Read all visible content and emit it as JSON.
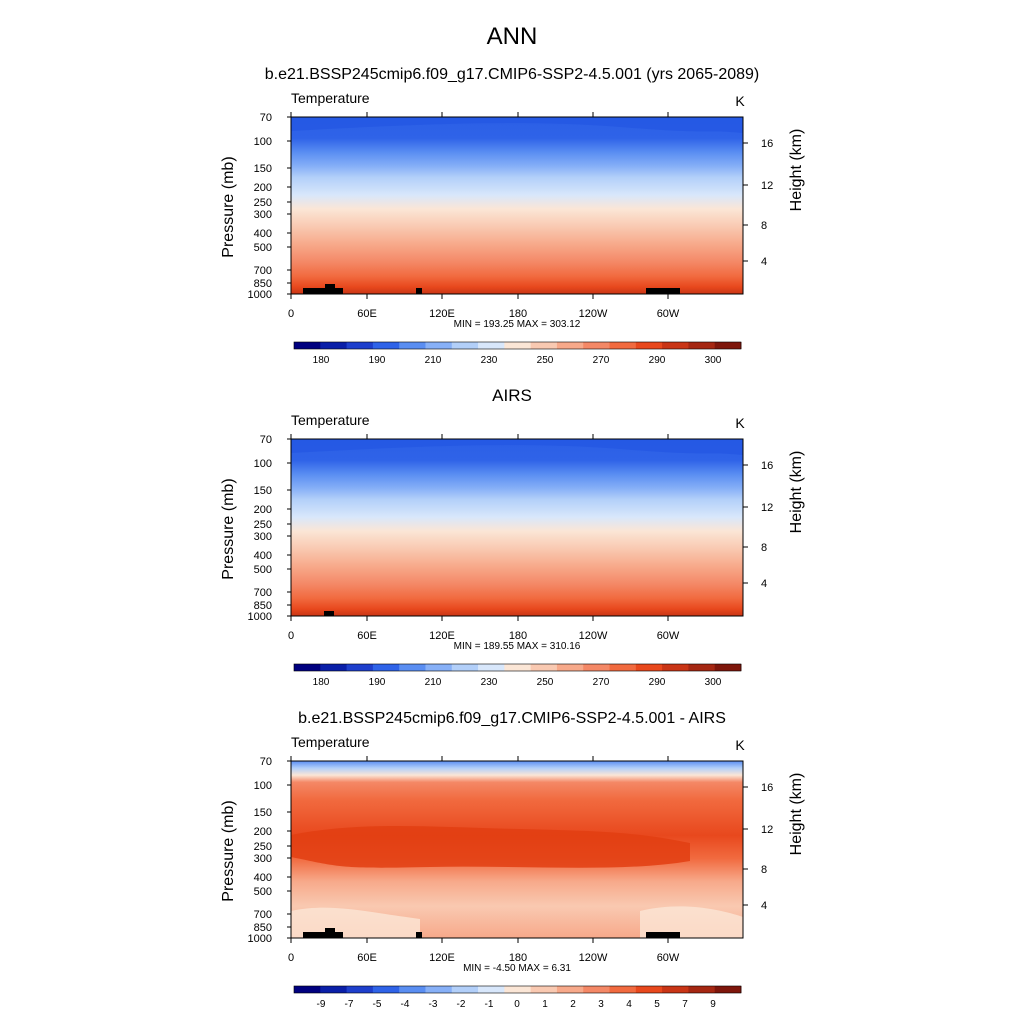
{
  "page_title": "ANN",
  "chart_data": [
    {
      "type": "contour",
      "title": "b.e21.BSSP245cmip6.f09_g17.CMIP6-SSP2-4.5.001 (yrs 2065-2089)",
      "variable": "Temperature",
      "units": "K",
      "ylabel": "Pressure (mb)",
      "ylabel_right": "Height (km)",
      "x_ticks": [
        "0",
        "60E",
        "120E",
        "180",
        "120W",
        "60W"
      ],
      "y_ticks": [
        "70",
        "100",
        "150",
        "200",
        "250",
        "300",
        "400",
        "500",
        "700",
        "850",
        "1000"
      ],
      "right_ticks": [
        "16",
        "12",
        "8",
        "4"
      ],
      "stats": "MIN = 193.25  MAX = 303.12",
      "min": 193.25,
      "max": 303.12,
      "colorbar_labels": [
        "180",
        "190",
        "210",
        "230",
        "250",
        "270",
        "290",
        "300"
      ],
      "scale": "absolute"
    },
    {
      "type": "contour",
      "title": "AIRS",
      "variable": "Temperature",
      "units": "K",
      "ylabel": "Pressure (mb)",
      "ylabel_right": "Height (km)",
      "x_ticks": [
        "0",
        "60E",
        "120E",
        "180",
        "120W",
        "60W"
      ],
      "y_ticks": [
        "70",
        "100",
        "150",
        "200",
        "250",
        "300",
        "400",
        "500",
        "700",
        "850",
        "1000"
      ],
      "right_ticks": [
        "16",
        "12",
        "8",
        "4"
      ],
      "stats": "MIN = 189.55  MAX = 310.16",
      "min": 189.55,
      "max": 310.16,
      "colorbar_labels": [
        "180",
        "190",
        "210",
        "230",
        "250",
        "270",
        "290",
        "300"
      ],
      "scale": "absolute"
    },
    {
      "type": "contour",
      "title": "b.e21.BSSP245cmip6.f09_g17.CMIP6-SSP2-4.5.001 - AIRS",
      "variable": "Temperature",
      "units": "K",
      "ylabel": "Pressure (mb)",
      "ylabel_right": "Height (km)",
      "x_ticks": [
        "0",
        "60E",
        "120E",
        "180",
        "120W",
        "60W"
      ],
      "y_ticks": [
        "70",
        "100",
        "150",
        "200",
        "250",
        "300",
        "400",
        "500",
        "700",
        "850",
        "1000"
      ],
      "right_ticks": [
        "16",
        "12",
        "8",
        "4"
      ],
      "stats": "MIN =  -4.50  MAX =   6.31",
      "min": -4.5,
      "max": 6.31,
      "colorbar_labels": [
        "-9",
        "-7",
        "-5",
        "-4",
        "-3",
        "-2",
        "-1",
        "0",
        "1",
        "2",
        "3",
        "4",
        "5",
        "7",
        "9"
      ],
      "scale": "difference"
    }
  ],
  "colorbar_colors": [
    "#00007f",
    "#0a1fa8",
    "#1e3fcc",
    "#2f63e8",
    "#5a8ef2",
    "#87b0f7",
    "#b2cff9",
    "#d8e7fb",
    "#fbe6d6",
    "#f9c9b1",
    "#f7a98a",
    "#f48866",
    "#f16a3f",
    "#e8481d",
    "#c93516",
    "#a52712",
    "#7e160b"
  ],
  "land_color": "#000000"
}
